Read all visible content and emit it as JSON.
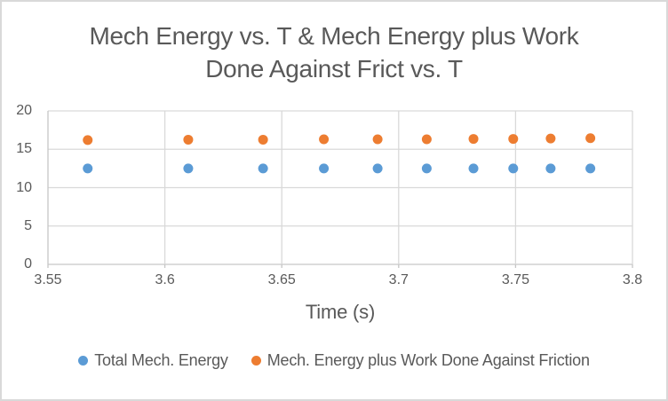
{
  "window": {
    "background": "#FFFFFF",
    "border_color": "#D9D9D9"
  },
  "chart_data": {
    "type": "scatter",
    "title": "Mech Energy vs. T & Mech Energy plus Work Done Against Frict vs. T",
    "title_lines": [
      "Mech Energy vs. T & Mech Energy plus Work",
      "Done Against Frict vs. T"
    ],
    "xlabel": "Time (s)",
    "ylabel": "",
    "xlim": [
      3.55,
      3.8
    ],
    "ylim": [
      0,
      20
    ],
    "x_tick_values": [
      3.55,
      3.6,
      3.65,
      3.7,
      3.75,
      3.8
    ],
    "x_tick_labels": [
      "3.55",
      "3.6",
      "3.65",
      "3.7",
      "3.75",
      "3.8"
    ],
    "y_tick_values": [
      0,
      5,
      10,
      15,
      20
    ],
    "y_tick_labels": [
      "0",
      "5",
      "10",
      "15",
      "20"
    ],
    "grid": true,
    "legend_position": "bottom",
    "x": [
      3.567,
      3.61,
      3.642,
      3.668,
      3.691,
      3.712,
      3.732,
      3.749,
      3.765,
      3.782
    ],
    "series": [
      {
        "name": "Total Mech. Energy",
        "color": "#5B9BD5",
        "values": [
          12.5,
          12.5,
          12.5,
          12.5,
          12.5,
          12.5,
          12.5,
          12.5,
          12.5,
          12.5
        ]
      },
      {
        "name": "Mech. Energy plus Work Done Against Friction",
        "color": "#ED7D31",
        "values": [
          16.2,
          16.25,
          16.25,
          16.3,
          16.3,
          16.3,
          16.35,
          16.35,
          16.4,
          16.45
        ]
      }
    ],
    "marker_radius": 5.5,
    "text_color": "#595959",
    "gridline_color": "#D9D9D9",
    "axis_line_color": "#C6C6C6"
  }
}
